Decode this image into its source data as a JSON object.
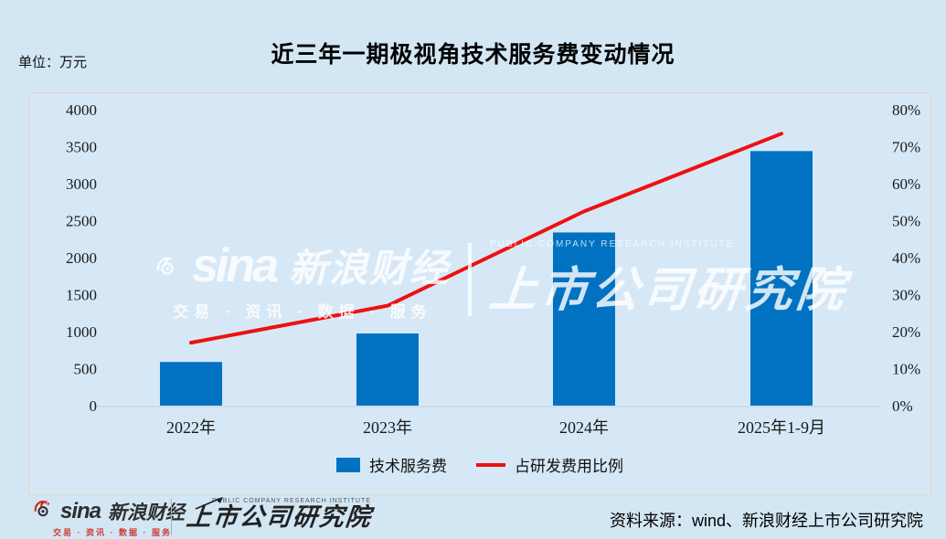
{
  "unit_label": "单位：万元",
  "title": "近三年一期极视角技术服务费变动情况",
  "colors": {
    "background": "#d3e6f4",
    "panel": "#d6e8f6",
    "bar": "#0072c1",
    "line": "#ee1111",
    "axis_text": "#1a1a1a",
    "baseline": "#c9ced4",
    "brand_red": "#cf3a32"
  },
  "chart_data": {
    "type": "bar+line combo",
    "title": "近三年一期极视角技术服务费变动情况",
    "unit": "万元",
    "categories": [
      "2022年",
      "2023年",
      "2024年",
      "2025年1-9月"
    ],
    "series": [
      {
        "name": "技术服务费",
        "type": "bar",
        "axis": "left",
        "unit": "万元",
        "values": [
          590,
          975,
          2340,
          3440
        ]
      },
      {
        "name": "占研发费用比例",
        "type": "line",
        "axis": "right",
        "unit": "%",
        "values": [
          17,
          27,
          52.5,
          73.5
        ]
      }
    ],
    "left_axis": {
      "min": 0,
      "max": 4000,
      "step": 500,
      "ticks": [
        "0",
        "500",
        "1000",
        "1500",
        "2000",
        "2500",
        "3000",
        "3500",
        "4000"
      ]
    },
    "right_axis": {
      "min": 0,
      "max": 80,
      "step": 10,
      "ticks": [
        "0%",
        "10%",
        "20%",
        "30%",
        "40%",
        "50%",
        "60%",
        "70%",
        "80%"
      ]
    },
    "grid": false,
    "legend_position": "bottom"
  },
  "legend": {
    "bar_label": "技术服务费",
    "line_label": "占研发费用比例"
  },
  "watermark": {
    "sina": "sina",
    "sina_cn": "新浪财经",
    "tagline": "交易 · 资讯 · 数据 · 服务",
    "institute": "上市公司研究院",
    "institute_en": "PUBLIC COMPANY RESEARCH INSTITUTE"
  },
  "footer": {
    "sina_logo": "sina",
    "sina_cn": "新浪财经",
    "tagline": "交易 · 资讯 · 数据 · 服务",
    "institute": "上市公司研究院",
    "institute_en": "PUBLIC COMPANY RESEARCH INSTITUTE",
    "source": "资料来源：wind、新浪财经上市公司研究院"
  }
}
